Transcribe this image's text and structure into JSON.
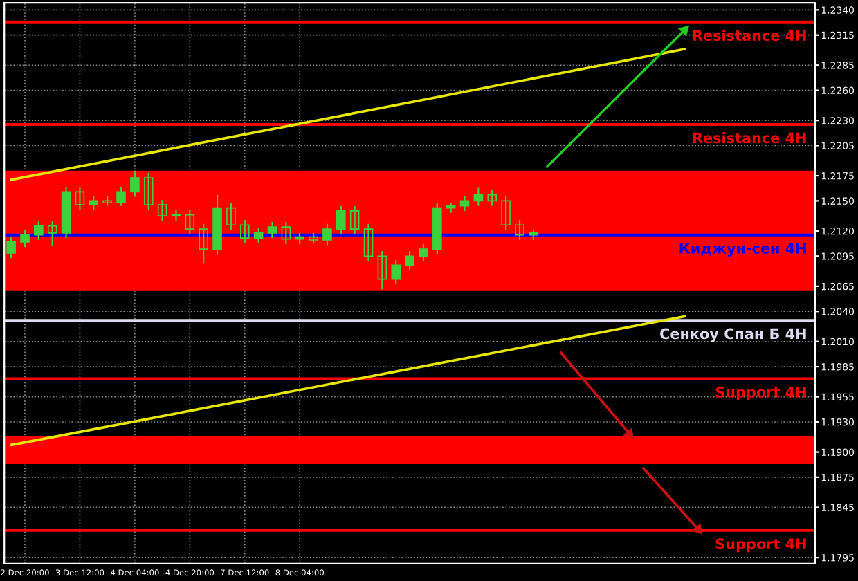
{
  "chart_data": {
    "type": "candlestick",
    "color": "#3cd23c",
    "categories": [
      null,
      "2 Dec 20:00",
      null,
      null,
      null,
      "3 Dec 12:00",
      null,
      null,
      null,
      "4 Dec 04:00",
      null,
      null,
      null,
      "4 Dec 20:00",
      null,
      null,
      null,
      "7 Dec 12:00",
      null,
      null,
      null,
      "8 Dec 04:00",
      null,
      null,
      null,
      null,
      null,
      null,
      null,
      null,
      null,
      null,
      null,
      null,
      null,
      null,
      null,
      null,
      null,
      null,
      null,
      null,
      null,
      null,
      null,
      null,
      null,
      null,
      null,
      null,
      null,
      null,
      null,
      null,
      null,
      null,
      null,
      null,
      null
    ],
    "ohlc": [
      [
        1.2098,
        1.2114,
        1.2093,
        1.2109
      ],
      [
        1.2109,
        1.2121,
        1.2104,
        1.2116
      ],
      [
        1.2116,
        1.213,
        1.2111,
        1.2125
      ],
      [
        1.2125,
        1.213,
        1.2105,
        1.2118
      ],
      [
        1.2118,
        1.2164,
        1.2113,
        1.2159
      ],
      [
        1.2159,
        1.2164,
        1.2141,
        1.2146
      ],
      [
        1.2146,
        1.2155,
        1.2141,
        1.215
      ],
      [
        1.215,
        1.2155,
        1.2145,
        1.2148
      ],
      [
        1.2148,
        1.2164,
        1.2145,
        1.2159
      ],
      [
        1.2159,
        1.218,
        1.2154,
        1.2173
      ],
      [
        1.2173,
        1.2178,
        1.2141,
        1.2146
      ],
      [
        1.2146,
        1.2151,
        1.213,
        1.2135
      ],
      [
        1.2135,
        1.2141,
        1.213,
        1.2136
      ],
      [
        1.2136,
        1.2141,
        1.2117,
        1.2122
      ],
      [
        1.2122,
        1.2127,
        1.2088,
        1.2102
      ],
      [
        1.2102,
        1.2156,
        1.2097,
        1.2143
      ],
      [
        1.2143,
        1.2148,
        1.2121,
        1.2126
      ],
      [
        1.2126,
        1.2131,
        1.2108,
        1.2113
      ],
      [
        1.2113,
        1.2123,
        1.2108,
        1.2118
      ],
      [
        1.2118,
        1.2129,
        1.2113,
        1.2124
      ],
      [
        1.2124,
        1.2129,
        1.2107,
        1.2112
      ],
      [
        1.2112,
        1.2118,
        1.2107,
        1.2114
      ],
      [
        1.2114,
        1.2118,
        1.2108,
        1.2111
      ],
      [
        1.2111,
        1.2127,
        1.2106,
        1.2122
      ],
      [
        1.2122,
        1.2145,
        1.2117,
        1.214
      ],
      [
        1.214,
        1.2145,
        1.2117,
        1.2122
      ],
      [
        1.2122,
        1.2127,
        1.209,
        1.2095
      ],
      [
        1.2095,
        1.21,
        1.2062,
        1.2072
      ],
      [
        1.2072,
        1.2091,
        1.2067,
        1.2086
      ],
      [
        1.2086,
        1.21,
        1.2081,
        1.2095
      ],
      [
        1.2095,
        1.2107,
        1.209,
        1.2102
      ],
      [
        1.2102,
        1.2148,
        1.2097,
        1.2143
      ],
      [
        1.2143,
        1.2148,
        1.2138,
        1.2145
      ],
      [
        1.2145,
        1.2155,
        1.214,
        1.215
      ],
      [
        1.215,
        1.2163,
        1.2145,
        1.2156
      ],
      [
        1.2156,
        1.2161,
        1.2145,
        1.215
      ],
      [
        1.215,
        1.2155,
        1.2121,
        1.2126
      ],
      [
        1.2126,
        1.2131,
        1.2111,
        1.2116
      ],
      [
        1.2116,
        1.2121,
        1.2111,
        1.2118
      ],
      null,
      null,
      null,
      null,
      null,
      null,
      null,
      null,
      null,
      null,
      null,
      null,
      null,
      null,
      null,
      null,
      null,
      null,
      null,
      null
    ],
    "series": [
      {
        "type": "line",
        "color": "#e6e600",
        "values": [
          1.2171,
          null,
          null,
          null,
          null,
          null,
          null,
          null,
          null,
          null,
          null,
          null,
          null,
          null,
          null,
          null,
          null,
          null,
          null,
          null,
          null,
          null,
          null,
          null,
          null,
          null,
          null,
          null,
          null,
          null,
          null,
          null,
          null,
          null,
          null,
          null,
          null,
          null,
          null,
          null,
          null,
          null,
          null,
          null,
          null,
          null,
          null,
          null,
          null,
          1.2301,
          null,
          null,
          null,
          null,
          null,
          null,
          null,
          null,
          null
        ]
      },
      {
        "type": "line",
        "color": "#e6e600",
        "values": [
          1.1907,
          null,
          null,
          null,
          null,
          null,
          null,
          null,
          null,
          null,
          null,
          null,
          null,
          null,
          null,
          null,
          null,
          null,
          null,
          null,
          null,
          null,
          null,
          null,
          null,
          null,
          null,
          null,
          null,
          null,
          null,
          null,
          null,
          null,
          null,
          null,
          null,
          null,
          null,
          null,
          null,
          null,
          null,
          null,
          null,
          null,
          null,
          null,
          null,
          1.2035,
          null,
          null,
          null,
          null,
          null,
          null,
          null,
          null,
          null
        ]
      },
      {
        "type": "line",
        "marker": "triangle",
        "color": "#22cc22",
        "values": [
          null,
          null,
          null,
          null,
          null,
          null,
          null,
          null,
          null,
          null,
          null,
          null,
          null,
          null,
          null,
          null,
          null,
          null,
          null,
          null,
          null,
          null,
          null,
          null,
          null,
          null,
          null,
          null,
          null,
          null,
          null,
          null,
          null,
          null,
          null,
          null,
          null,
          null,
          null,
          1.2184,
          null,
          null,
          null,
          null,
          null,
          null,
          null,
          null,
          null,
          1.232,
          null,
          null,
          null,
          null,
          null,
          null,
          null,
          null,
          null
        ]
      },
      {
        "type": "line",
        "marker": "triangle",
        "color": "#cc1111",
        "values": [
          null,
          null,
          null,
          null,
          null,
          null,
          null,
          null,
          null,
          null,
          null,
          null,
          null,
          null,
          null,
          null,
          null,
          null,
          null,
          null,
          null,
          null,
          null,
          null,
          null,
          null,
          null,
          null,
          null,
          null,
          null,
          null,
          null,
          null,
          null,
          null,
          null,
          null,
          null,
          null,
          1.1999,
          null,
          null,
          null,
          null,
          1.1918,
          null,
          null,
          null,
          null,
          null,
          null,
          null,
          null,
          null,
          null,
          null,
          null,
          null
        ]
      },
      {
        "type": "line",
        "marker": "triangle",
        "color": "#cc1111",
        "values": [
          null,
          null,
          null,
          null,
          null,
          null,
          null,
          null,
          null,
          null,
          null,
          null,
          null,
          null,
          null,
          null,
          null,
          null,
          null,
          null,
          null,
          null,
          null,
          null,
          null,
          null,
          null,
          null,
          null,
          null,
          null,
          null,
          null,
          null,
          null,
          null,
          null,
          null,
          null,
          null,
          null,
          null,
          null,
          null,
          null,
          null,
          1.1884,
          null,
          null,
          null,
          1.1823,
          null,
          null,
          null,
          null,
          null,
          null,
          null,
          null
        ]
      }
    ],
    "bands": [
      {
        "axis": "y",
        "from": 1.2061,
        "to": 1.218,
        "color": "#ff0000"
      },
      {
        "axis": "y",
        "from": 1.1888,
        "to": 1.1916,
        "color": "#ff0000"
      }
    ],
    "ref_lines": [
      {
        "axis": "y",
        "value": 1.2328,
        "label": "Resistance 4H",
        "color": "#ff0000"
      },
      {
        "axis": "y",
        "value": 1.2226,
        "label": "Resistance 4H",
        "color": "#ff0000"
      },
      {
        "axis": "y",
        "value": 1.2116,
        "label": "Киджун-сен 4H",
        "color": "#0000ff"
      },
      {
        "axis": "y",
        "value": 1.2031,
        "label": "Сенкоу Спан Б 4H",
        "color": "#e0d8f0"
      },
      {
        "axis": "y",
        "value": 1.1973,
        "label": "Support 4H",
        "color": "#ff0000"
      },
      {
        "axis": "y",
        "value": 1.1822,
        "label": "Support 4H",
        "color": "#ff0000"
      }
    ],
    "ylim": [
      1.1789,
      1.2347
    ],
    "yticks": [
      {
        "value": 1.234,
        "label": "1.2340"
      },
      {
        "value": 1.2315,
        "label": "1.2315"
      },
      {
        "value": 1.2285,
        "label": "1.2285"
      },
      {
        "value": 1.226,
        "label": "1.2260"
      },
      {
        "value": 1.223,
        "label": "1.2230"
      },
      {
        "value": 1.2205,
        "label": "1.2205"
      },
      {
        "value": 1.2175,
        "label": "1.2175"
      },
      {
        "value": 1.215,
        "label": "1.2150"
      },
      {
        "value": 1.212,
        "label": "1.2120"
      },
      {
        "value": 1.2095,
        "label": "1.2095"
      },
      {
        "value": 1.2065,
        "label": "1.2065"
      },
      {
        "value": 1.204,
        "label": "1.2040"
      },
      {
        "value": 1.201,
        "label": "1.2010"
      },
      {
        "value": 1.1985,
        "label": "1.1985"
      },
      {
        "value": 1.1955,
        "label": "1.1955"
      },
      {
        "value": 1.193,
        "label": "1.1930"
      },
      {
        "value": 1.19,
        "label": "1.1900"
      },
      {
        "value": 1.1875,
        "label": "1.1875"
      },
      {
        "value": 1.1845,
        "label": "1.1845"
      },
      {
        "value": 1.1795,
        "label": "1.1795"
      }
    ],
    "grid": true,
    "legend": false
  }
}
